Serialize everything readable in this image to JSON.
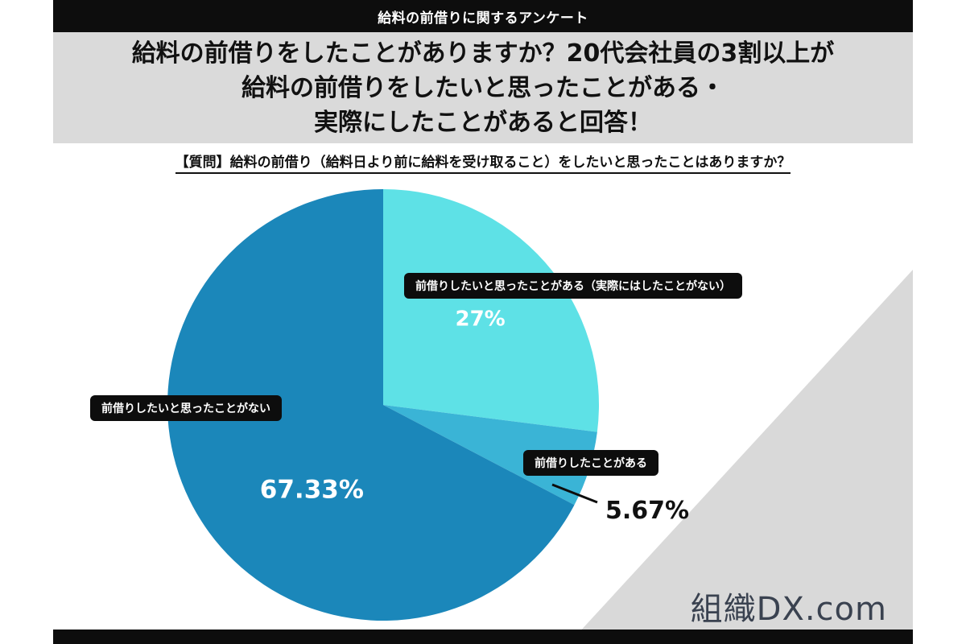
{
  "banner": {
    "title": "給料の前借りに関するアンケート"
  },
  "headline": {
    "lines": [
      "給料の前借りをしたことがありますか？20代会社員の3割以上が",
      "給料の前借りをしたいと思ったことがある・",
      "実際にしたことがあると回答！"
    ]
  },
  "question": "【質問】給料の前借り（給料日より前に給料を受け取ること）をしたいと思ったことはありますか？",
  "chart_data": {
    "type": "pie",
    "title": "",
    "start_angle_deg": 0,
    "direction": "clockwise",
    "slices": [
      {
        "label": "前借りしたいと思ったことがある（実際にはしたことがない）",
        "value": 27,
        "display": "27%",
        "color": "#5ee1e6",
        "label_color": "#ffffff"
      },
      {
        "label": "前借りしたことがある",
        "value": 5.67,
        "display": "5.67%",
        "color": "#3ab4d6",
        "label_color": "#111111"
      },
      {
        "label": "前借りしたいと思ったことがない",
        "value": 67.33,
        "display": "67.33%",
        "color": "#1b87ba",
        "label_color": "#ffffff"
      }
    ]
  },
  "brand": {
    "name": "組織DX.com"
  },
  "colors": {
    "dark": "#0d0d0d",
    "band": "#dadada",
    "deco": "#d9d9d9"
  }
}
